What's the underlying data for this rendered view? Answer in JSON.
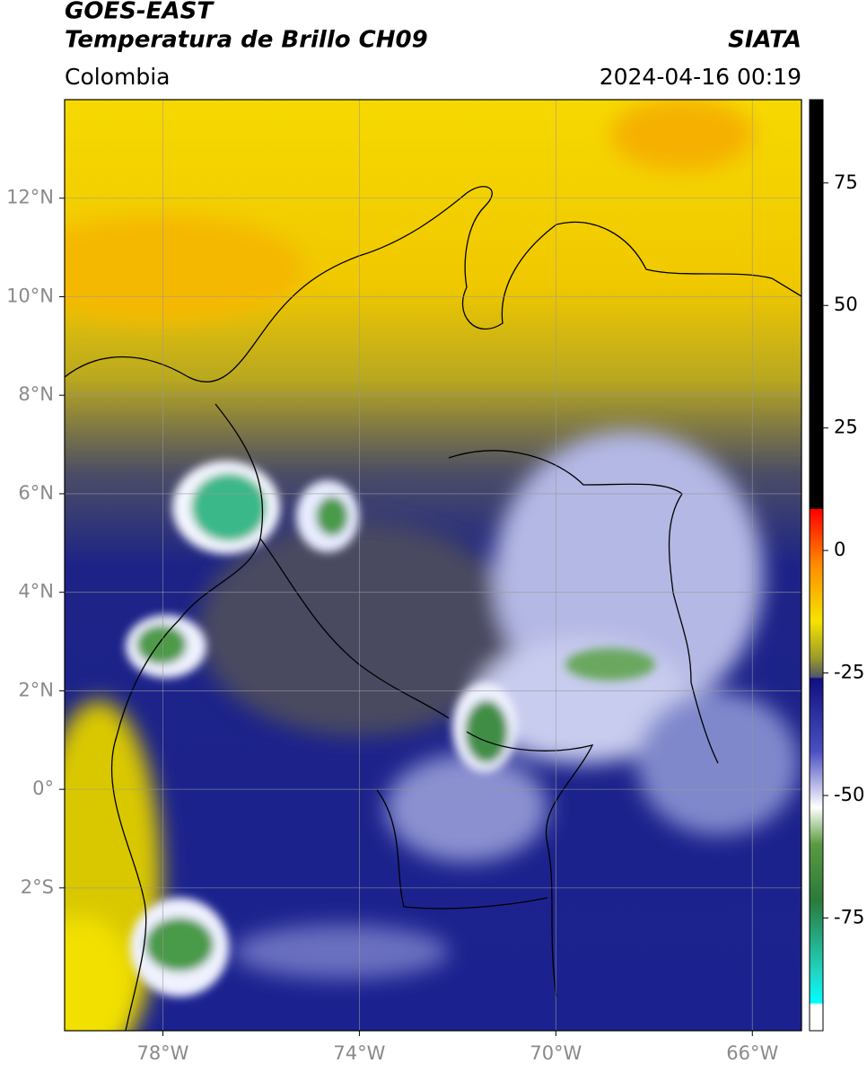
{
  "header": {
    "title": "GOES-EAST",
    "subtitle": "Temperatura de Brillo CH09",
    "source": "SIATA",
    "region": "Colombia",
    "datetime": "2024-04-16 00:19"
  },
  "map": {
    "xlim": [
      -80,
      -65
    ],
    "ylim": [
      -4.9,
      14
    ],
    "xticks": [
      {
        "value": -78,
        "label": "78°W"
      },
      {
        "value": -74,
        "label": "74°W"
      },
      {
        "value": -70,
        "label": "70°W"
      },
      {
        "value": -66,
        "label": "66°W"
      }
    ],
    "yticks": [
      {
        "value": 12,
        "label": "12°N"
      },
      {
        "value": 10,
        "label": "10°N"
      },
      {
        "value": 8,
        "label": "8°N"
      },
      {
        "value": 6,
        "label": "6°N"
      },
      {
        "value": 4,
        "label": "4°N"
      },
      {
        "value": 2,
        "label": "2°N"
      },
      {
        "value": 0,
        "label": "0°"
      },
      {
        "value": -2,
        "label": "2°S"
      }
    ],
    "grid": true
  },
  "colorbar": {
    "lim": [
      -98,
      92
    ],
    "ticks": [
      75,
      50,
      25,
      0,
      -25,
      -50,
      -75
    ]
  }
}
